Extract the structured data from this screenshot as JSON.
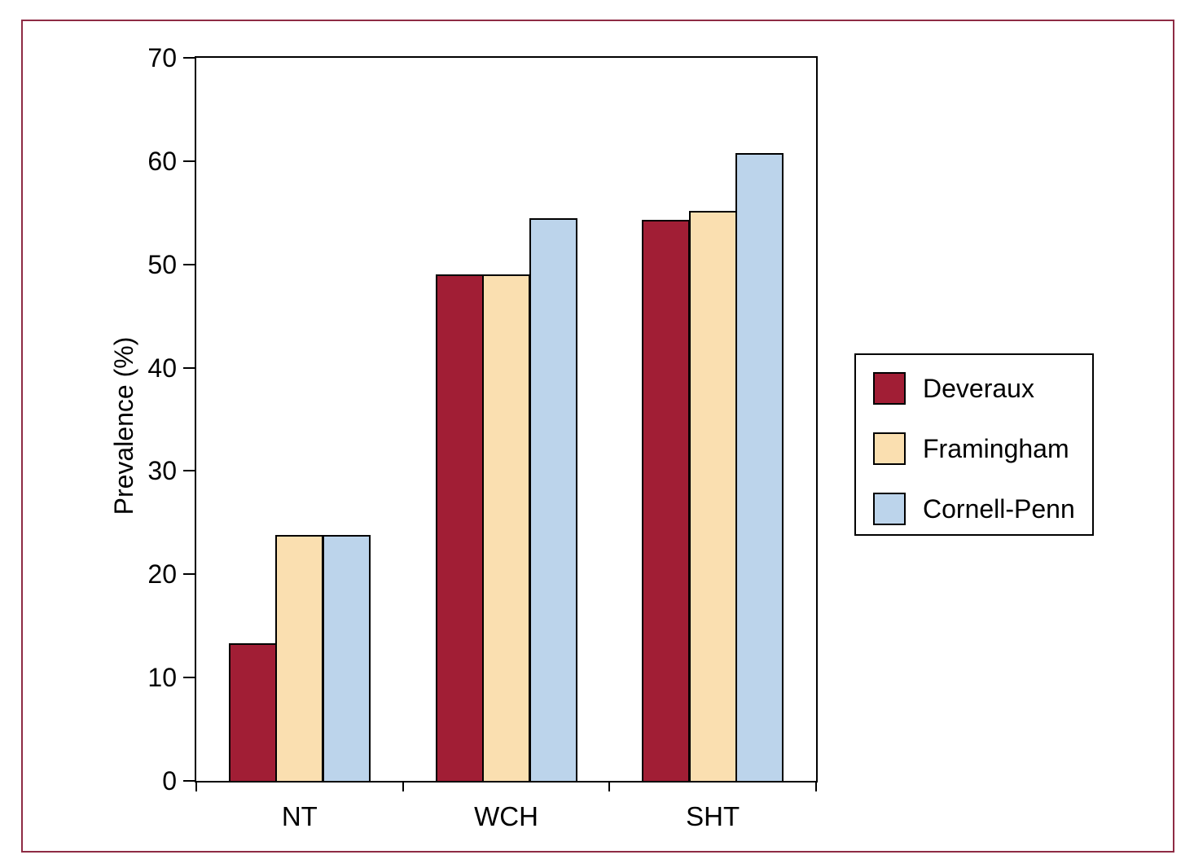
{
  "figure": {
    "border_color": "#8E2B44",
    "background_color": "#FFFFFF"
  },
  "chart_data": {
    "type": "bar",
    "categories": [
      "NT",
      "WCH",
      "SHT"
    ],
    "series": [
      {
        "name": "Deveraux",
        "color": "#A11E35",
        "values": [
          13.3,
          49.0,
          54.3
        ]
      },
      {
        "name": "Framingham",
        "color": "#FADFB0",
        "values": [
          23.8,
          49.0,
          55.2
        ]
      },
      {
        "name": "Cornell-Penn",
        "color": "#BCD4EB",
        "values": [
          23.8,
          54.5,
          60.8
        ]
      }
    ],
    "title": "",
    "xlabel": "",
    "ylabel": "Prevalence (%)",
    "ylim": [
      0,
      70
    ],
    "yticks": [
      0,
      10,
      20,
      30,
      40,
      50,
      60,
      70
    ],
    "grid": false,
    "legend_position": "right",
    "bar_outline_color": "#000000",
    "axis_color": "#000000"
  }
}
